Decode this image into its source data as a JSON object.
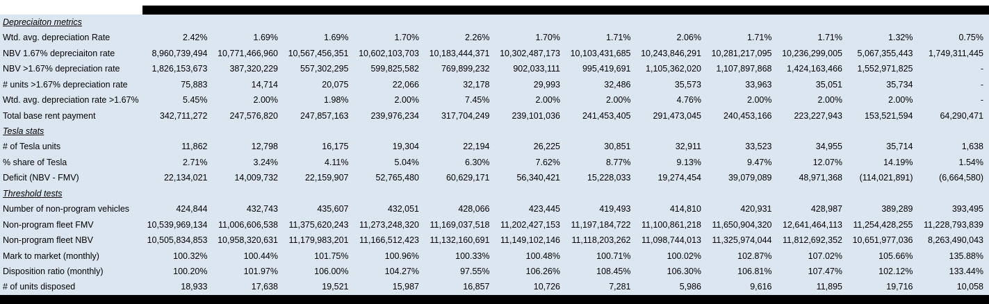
{
  "colors": {
    "page_bg": "#ffffff",
    "table_bg": "#dce6f1",
    "bar": "#000000",
    "text": "#000000"
  },
  "table": {
    "rows": [
      {
        "type": "section",
        "label": "Depreciaiton metrics",
        "values": [
          "",
          "",
          "",
          "",
          "",
          "",
          "",
          "",
          "",
          "",
          "",
          ""
        ]
      },
      {
        "type": "data",
        "label": "Wtd. avg. depreciation Rate",
        "values": [
          "2.42%",
          "1.69%",
          "1.69%",
          "1.70%",
          "2.26%",
          "1.70%",
          "1.71%",
          "2.06%",
          "1.71%",
          "1.71%",
          "1.32%",
          "0.75%"
        ]
      },
      {
        "type": "data",
        "label": "NBV 1.67% depreciaiton rate",
        "values": [
          "8,960,739,494",
          "10,771,466,960",
          "10,567,456,351",
          "10,602,103,703",
          "10,183,444,371",
          "10,302,487,173",
          "10,103,431,685",
          "10,243,846,291",
          "10,281,217,095",
          "10,236,299,005",
          "5,067,355,443",
          "1,749,311,445"
        ]
      },
      {
        "type": "data",
        "label": "NBV >1.67% depreciation rate",
        "values": [
          "1,826,153,673",
          "387,320,229",
          "557,302,295",
          "599,825,582",
          "769,899,232",
          "902,033,111",
          "995,419,691",
          "1,105,362,020",
          "1,107,897,868",
          "1,424,163,466",
          "1,552,971,825",
          "-"
        ]
      },
      {
        "type": "data",
        "label": "# units >1.67% depreciation rate",
        "values": [
          "75,883",
          "14,714",
          "20,075",
          "22,066",
          "32,178",
          "29,993",
          "32,486",
          "35,573",
          "33,963",
          "35,051",
          "35,734",
          "-"
        ]
      },
      {
        "type": "data",
        "label": "Wtd. avg. depreciation rate >1.67%",
        "values": [
          "5.45%",
          "2.00%",
          "1.98%",
          "2.00%",
          "7.45%",
          "2.00%",
          "2.00%",
          "4.76%",
          "2.00%",
          "2.00%",
          "2.00%",
          "-"
        ]
      },
      {
        "type": "data",
        "label": "Total base rent payment",
        "values": [
          "342,711,272",
          "247,576,820",
          "247,857,163",
          "239,976,234",
          "317,704,249",
          "239,101,036",
          "241,453,405",
          "291,473,045",
          "240,453,166",
          "223,227,943",
          "153,521,594",
          "64,290,471"
        ]
      },
      {
        "type": "section",
        "label": "Tesla stats",
        "values": [
          "",
          "",
          "",
          "",
          "",
          "",
          "",
          "",
          "",
          "",
          "",
          ""
        ]
      },
      {
        "type": "data",
        "label": "# of Tesla units",
        "values": [
          "11,862",
          "12,798",
          "16,175",
          "19,304",
          "22,194",
          "26,225",
          "30,851",
          "32,911",
          "33,523",
          "34,955",
          "35,714",
          "1,638"
        ]
      },
      {
        "type": "data",
        "label": "% share of Tesla",
        "values": [
          "2.71%",
          "3.24%",
          "4.11%",
          "5.04%",
          "6.30%",
          "7.62%",
          "8.77%",
          "9.13%",
          "9.47%",
          "12.07%",
          "14.19%",
          "1.54%"
        ]
      },
      {
        "type": "data",
        "label": "Deficit (NBV - FMV)",
        "values": [
          "22,134,021",
          "14,009,732",
          "22,159,907",
          "52,765,480",
          "60,629,171",
          "56,340,421",
          "15,228,033",
          "19,274,454",
          "39,079,089",
          "48,971,368",
          "(114,021,891)",
          "(6,664,580)"
        ]
      },
      {
        "type": "section",
        "label": "Threshold tests",
        "values": [
          "",
          "",
          "",
          "",
          "",
          "",
          "",
          "",
          "",
          "",
          "",
          ""
        ]
      },
      {
        "type": "data",
        "label": "Number of non-program vehicles",
        "values": [
          "424,844",
          "432,743",
          "435,607",
          "432,051",
          "428,066",
          "423,445",
          "419,493",
          "414,810",
          "420,931",
          "428,987",
          "389,289",
          "393,495"
        ]
      },
      {
        "type": "data",
        "label": "Non-program fleet FMV",
        "values": [
          "10,539,969,134",
          "11,006,606,538",
          "11,375,620,243",
          "11,273,248,320",
          "11,169,037,518",
          "11,202,427,153",
          "11,197,184,722",
          "11,100,861,218",
          "11,650,904,320",
          "12,641,464,113",
          "11,254,428,255",
          "11,228,793,839"
        ]
      },
      {
        "type": "data",
        "label": "Non-program fleet NBV",
        "values": [
          "10,505,834,853",
          "10,958,320,631",
          "11,179,983,201",
          "11,166,512,423",
          "11,132,160,691",
          "11,149,102,146",
          "11,118,203,262",
          "11,098,744,013",
          "11,325,974,044",
          "11,812,692,352",
          "10,651,977,036",
          "8,263,490,043"
        ]
      },
      {
        "type": "data",
        "label": "Mark to market (monthly)",
        "values": [
          "100.32%",
          "100.44%",
          "101.75%",
          "100.96%",
          "100.33%",
          "100.48%",
          "100.71%",
          "100.02%",
          "102.87%",
          "107.02%",
          "105.66%",
          "135.88%"
        ]
      },
      {
        "type": "data",
        "label": "Disposition ratio (monthly)",
        "values": [
          "100.20%",
          "101.97%",
          "106.00%",
          "104.27%",
          "97.55%",
          "106.26%",
          "108.45%",
          "106.30%",
          "106.81%",
          "107.47%",
          "102.12%",
          "133.44%"
        ]
      },
      {
        "type": "data",
        "label": "# of units disposed",
        "values": [
          "18,933",
          "17,638",
          "19,521",
          "15,987",
          "16,857",
          "10,726",
          "7,281",
          "5,986",
          "9,616",
          "11,895",
          "19,716",
          "10,058"
        ]
      }
    ]
  }
}
